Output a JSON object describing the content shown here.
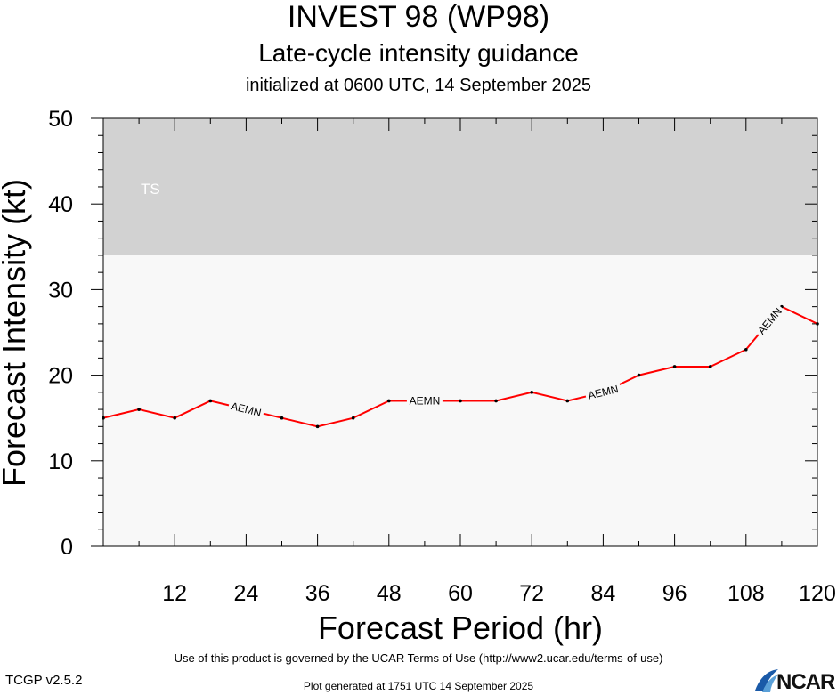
{
  "chart_data": {
    "type": "line",
    "title": "INVEST 98 (WP98)",
    "subtitle": "Late-cycle intensity guidance",
    "init_text": "initialized at 0600 UTC, 14 September 2025",
    "xlabel": "Forecast Period (hr)",
    "ylabel": "Forecast Intensity (kt)",
    "xlim": [
      0,
      120
    ],
    "ylim": [
      0,
      50
    ],
    "x_ticks": [
      12,
      24,
      36,
      48,
      60,
      72,
      84,
      96,
      108,
      120
    ],
    "y_ticks": [
      0,
      10,
      20,
      30,
      40,
      50
    ],
    "bands": [
      {
        "label": "TS",
        "from": 34,
        "to": 50,
        "color": "#d2d2d2"
      }
    ],
    "background_color": "#f8f8f8",
    "series": [
      {
        "name": "AEMN",
        "color": "#ff0000",
        "x": [
          0,
          6,
          12,
          18,
          24,
          30,
          36,
          42,
          48,
          54,
          60,
          66,
          72,
          78,
          84,
          90,
          96,
          102,
          108,
          114,
          120
        ],
        "values": [
          15,
          16,
          15,
          17,
          16,
          15,
          14,
          15,
          17,
          17,
          17,
          17,
          18,
          17,
          18,
          20,
          21,
          21,
          23,
          28,
          26
        ],
        "label_at": [
          24,
          54,
          84,
          112
        ]
      }
    ]
  },
  "footer": {
    "terms": "Use of this product is governed by the UCAR Terms of Use (http://www2.ucar.edu/terms-of-use)",
    "version": "TCGP v2.5.2",
    "generated": "Plot generated at 1751 UTC   14 September 2025",
    "logo_text": "NCAR"
  }
}
